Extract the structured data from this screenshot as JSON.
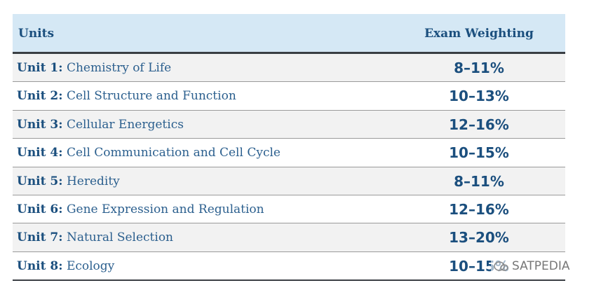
{
  "table": {
    "header": [
      "Units",
      "Exam Weighting"
    ],
    "rows": [
      [
        "Unit 1:",
        "Chemistry of Life",
        "8–11%"
      ],
      [
        "Unit 2:",
        "Cell Structure and Function",
        "10–13%"
      ],
      [
        "Unit 3:",
        "Cellular Energetics",
        "12–16%"
      ],
      [
        "Unit 4:",
        "Cell Communication and Cell Cycle",
        "10–15%"
      ],
      [
        "Unit 5:",
        "Heredity",
        "8–11%"
      ],
      [
        "Unit 6:",
        "Gene Expression and Regulation",
        "12–16%"
      ],
      [
        "Unit 7:",
        "Natural Selection",
        "13–20%"
      ],
      [
        "Unit 8:",
        "Ecology",
        "10–15%"
      ]
    ]
  },
  "watermark": "SATPEDIA"
}
